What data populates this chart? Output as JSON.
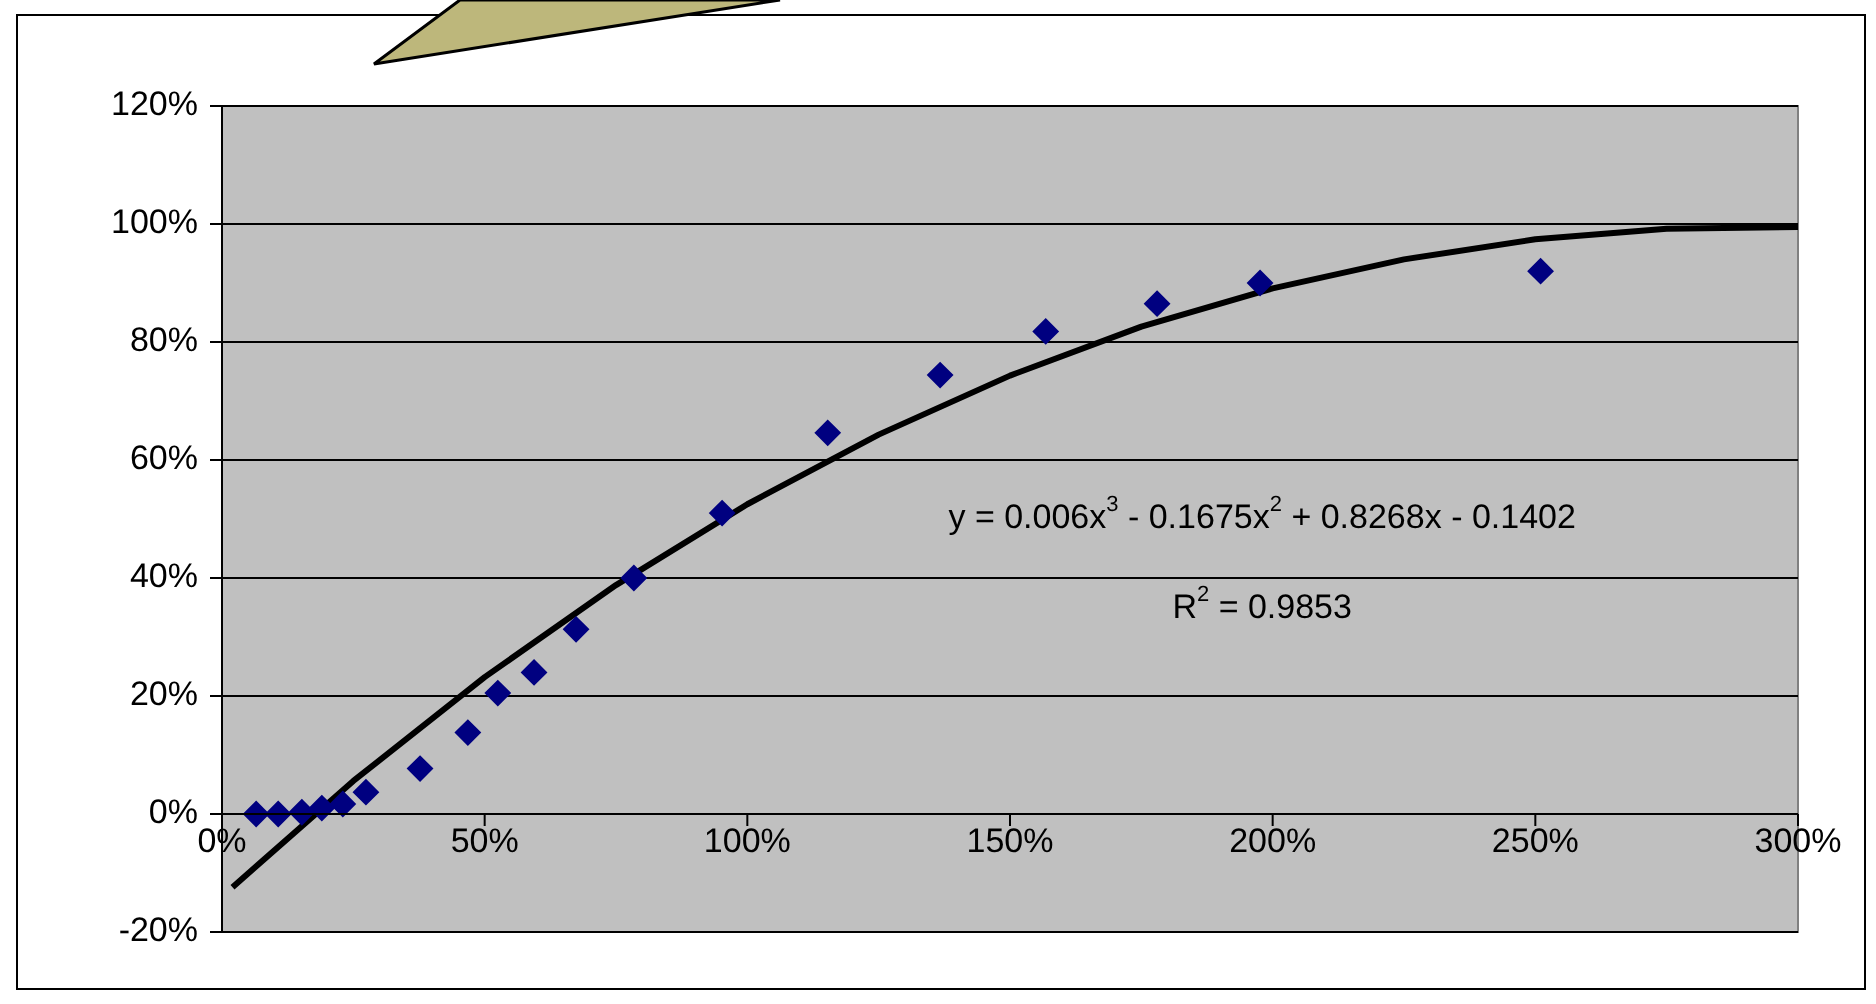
{
  "chart_data": {
    "type": "scatter",
    "marker": "diamond",
    "grid": "y",
    "legend": false,
    "xlim": [
      0,
      300
    ],
    "xticks": [
      {
        "value": 0,
        "label": "0%"
      },
      {
        "value": 50,
        "label": "50%"
      },
      {
        "value": 100,
        "label": "100%"
      },
      {
        "value": 150,
        "label": "150%"
      },
      {
        "value": 200,
        "label": "200%"
      },
      {
        "value": 250,
        "label": "250%"
      },
      {
        "value": 300,
        "label": "300%"
      }
    ],
    "ylim": [
      -20,
      120
    ],
    "yticks": [
      {
        "value": -20,
        "label": "-20%"
      },
      {
        "value": 0,
        "label": "0%"
      },
      {
        "value": 20,
        "label": "20%"
      },
      {
        "value": 40,
        "label": "40%"
      },
      {
        "value": 60,
        "label": "60%"
      },
      {
        "value": 80,
        "label": "80%"
      },
      {
        "value": 100,
        "label": "100%"
      },
      {
        "value": 120,
        "label": "120%"
      }
    ],
    "series": [
      {
        "color": "#000080",
        "x": [
          6.5,
          10.7,
          15.2,
          19,
          23,
          27.4,
          37.7,
          46.8,
          52.5,
          59.4,
          67.4,
          78.4,
          95.2,
          115.3,
          136.7,
          156.8,
          178,
          197.6,
          251
        ],
        "values": [
          0,
          0,
          0.3,
          1,
          1.7,
          3.7,
          7.7,
          13.8,
          20.5,
          24,
          31.3,
          40,
          51,
          64.6,
          74.4,
          81.8,
          86.5,
          90,
          92
        ]
      },
      {
        "type": "line",
        "color": "#000000",
        "marker": "none",
        "x": [
          2,
          25,
          50,
          75,
          100,
          125,
          150,
          175,
          200,
          225,
          250,
          275,
          300
        ],
        "values": [
          -12.4,
          5.6,
          23.2,
          38.8,
          52.5,
          64.3,
          74.3,
          82.6,
          89.1,
          94,
          97.4,
          99.2,
          99.5
        ]
      }
    ],
    "annotations": [
      "y = 0.006x$^{3}$ - 0.1675x$^{2}$ + 0.8268x - 0.1402",
      "R$^{2}$ = 0.9853"
    ]
  }
}
